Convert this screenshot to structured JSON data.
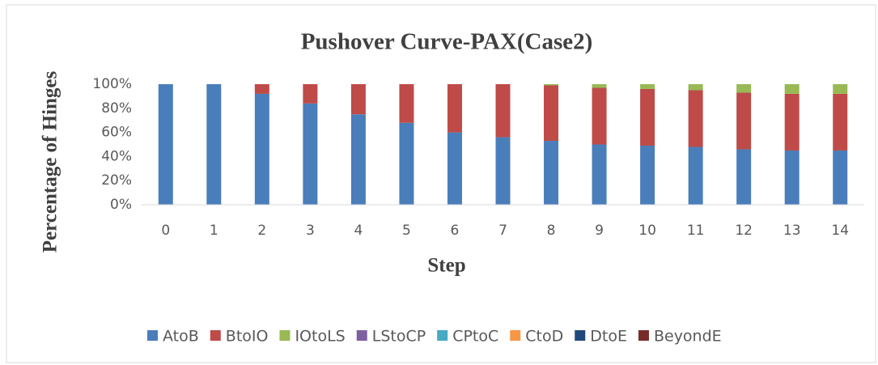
{
  "chart_data": {
    "type": "stacked_bar",
    "title": "Pushover Curve-PAX(Case2)",
    "x_label": "Step",
    "y_label": "Percentage of Hinges",
    "categories": [
      "0",
      "1",
      "2",
      "3",
      "4",
      "5",
      "6",
      "7",
      "8",
      "9",
      "10",
      "11",
      "12",
      "13",
      "14"
    ],
    "series": [
      {
        "name": "AtoB",
        "color": "#4a7ebb",
        "values": [
          100,
          100,
          92,
          84,
          75,
          68,
          60,
          56,
          53,
          50,
          49,
          48,
          46,
          45,
          45
        ]
      },
      {
        "name": "BtoIO",
        "color": "#be4b48",
        "values": [
          0,
          0,
          8,
          16,
          25,
          32,
          40,
          44,
          46,
          47,
          47,
          47,
          47,
          47,
          47
        ]
      },
      {
        "name": "IOtoLS",
        "color": "#98b954",
        "values": [
          0,
          0,
          0,
          0,
          0,
          0,
          0,
          0,
          1,
          3,
          4,
          5,
          7,
          8,
          8
        ]
      },
      {
        "name": "LStoCP",
        "color": "#7d60a0",
        "values": [
          0,
          0,
          0,
          0,
          0,
          0,
          0,
          0,
          0,
          0,
          0,
          0,
          0,
          0,
          0
        ]
      },
      {
        "name": "CPtoC",
        "color": "#46aac4",
        "values": [
          0,
          0,
          0,
          0,
          0,
          0,
          0,
          0,
          0,
          0,
          0,
          0,
          0,
          0,
          0
        ]
      },
      {
        "name": "CtoD",
        "color": "#f79646",
        "values": [
          0,
          0,
          0,
          0,
          0,
          0,
          0,
          0,
          0,
          0,
          0,
          0,
          0,
          0,
          0
        ]
      },
      {
        "name": "DtoE",
        "color": "#1f497d",
        "values": [
          0,
          0,
          0,
          0,
          0,
          0,
          0,
          0,
          0,
          0,
          0,
          0,
          0,
          0,
          0
        ]
      },
      {
        "name": "BeyondE",
        "color": "#772c2a",
        "values": [
          0,
          0,
          0,
          0,
          0,
          0,
          0,
          0,
          0,
          0,
          0,
          0,
          0,
          0,
          0
        ]
      }
    ],
    "ylim": [
      0,
      100
    ],
    "yticks": [
      {
        "value": 0,
        "label": "0%"
      },
      {
        "value": 20,
        "label": "20%"
      },
      {
        "value": 40,
        "label": "40%"
      },
      {
        "value": 60,
        "label": "60%"
      },
      {
        "value": 80,
        "label": "80%"
      },
      {
        "value": 100,
        "label": "100%"
      }
    ],
    "grid": false,
    "legend": "bottom"
  }
}
